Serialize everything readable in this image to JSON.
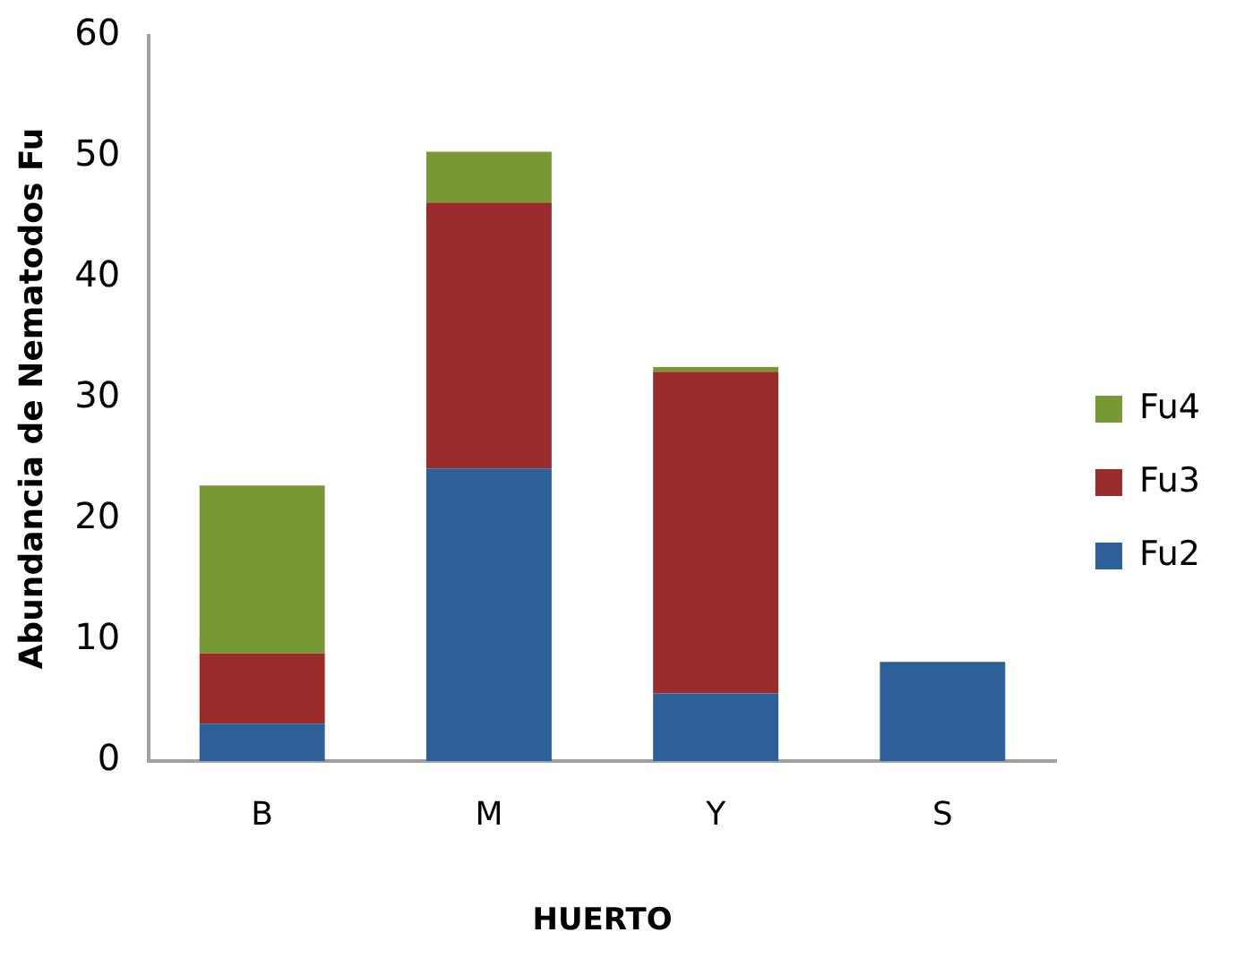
{
  "chart_data": {
    "type": "bar",
    "stacked": true,
    "xlabel": "HUERTO",
    "ylabel": "Abundancia de Nematodos Fu",
    "categories": [
      "B",
      "M",
      "Y",
      "S"
    ],
    "series": [
      {
        "name": "Fu2",
        "color": "#2d5f98",
        "values": [
          3.1,
          24.2,
          5.6,
          8.2
        ]
      },
      {
        "name": "Fu3",
        "color": "#9a2d2b",
        "values": [
          5.8,
          22.0,
          26.6,
          null
        ]
      },
      {
        "name": "Fu4",
        "color": "#779935",
        "values": [
          13.9,
          4.2,
          0.4,
          null
        ]
      }
    ],
    "ylim": [
      0,
      60
    ],
    "yticks": [
      0,
      10,
      20,
      30,
      40,
      50,
      60
    ],
    "grid": false,
    "legend": "right"
  }
}
